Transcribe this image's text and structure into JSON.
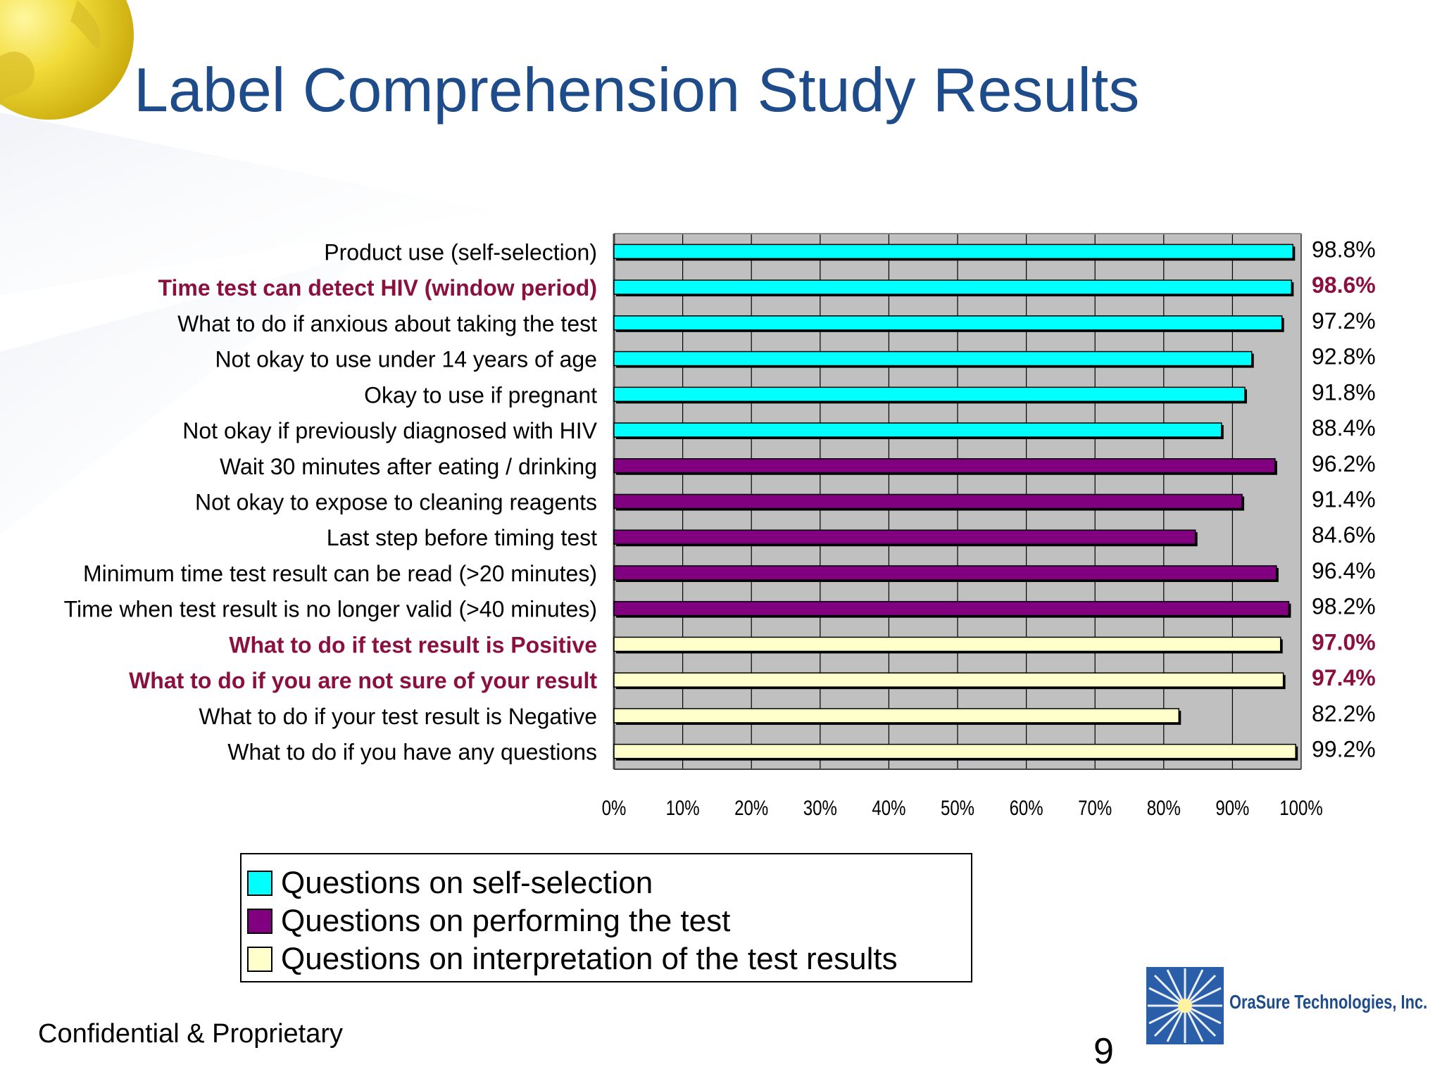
{
  "title": "Label Comprehension Study Results",
  "footer": {
    "confidential": "Confidential & Proprietary",
    "page_number": "9"
  },
  "logo": {
    "company": "OraSure Technologies, Inc."
  },
  "colors": {
    "title": "#1e4b8a",
    "highlight_text": "#8b1040",
    "plot_background": "#c0c0c0",
    "self_selection": "#00ffff",
    "performing": "#800080",
    "interpretation": "#ffffcc"
  },
  "legend": {
    "items": [
      {
        "label": "Questions on self-selection",
        "color": "#00ffff"
      },
      {
        "label": "Questions on performing the test",
        "color": "#800080"
      },
      {
        "label": "Questions on interpretation of the test results",
        "color": "#ffffcc"
      }
    ]
  },
  "chart_data": {
    "type": "bar",
    "orientation": "horizontal",
    "title": "",
    "xlabel": "",
    "ylabel": "",
    "xlim": [
      0,
      100
    ],
    "x_ticks": [
      "0%",
      "10%",
      "20%",
      "30%",
      "40%",
      "50%",
      "60%",
      "70%",
      "80%",
      "90%",
      "100%"
    ],
    "grid": true,
    "legend_position": "bottom-left",
    "categories": [
      "Product use (self-selection)",
      "Time test can detect HIV (window period)",
      "What to do if anxious about taking the test",
      "Not okay to use under 14 years of age",
      "Okay to use if pregnant",
      "Not okay if previously diagnosed with HIV",
      "Wait 30 minutes after eating / drinking",
      "Not okay to expose to cleaning reagents",
      "Last step before timing test",
      "Minimum time test result can be read (>20 minutes)",
      "Time when test result is no longer valid (>40 minutes)",
      "What to do if test result is Positive",
      "What to do if you are not sure of your result",
      "What to do if your test result is Negative",
      "What to do if you have any questions"
    ],
    "values": [
      98.8,
      98.6,
      97.2,
      92.8,
      91.8,
      88.4,
      96.2,
      91.4,
      84.6,
      96.4,
      98.2,
      97.0,
      97.4,
      82.2,
      99.2
    ],
    "value_labels": [
      "98.8%",
      "98.6%",
      "97.2%",
      "92.8%",
      "91.8%",
      "88.4%",
      "96.2%",
      "91.4%",
      "84.6%",
      "96.4%",
      "98.2%",
      "97.0%",
      "97.4%",
      "82.2%",
      "99.2%"
    ],
    "groups": [
      0,
      0,
      0,
      0,
      0,
      0,
      1,
      1,
      1,
      1,
      1,
      2,
      2,
      2,
      2
    ],
    "highlighted": [
      false,
      true,
      false,
      false,
      false,
      false,
      false,
      false,
      false,
      false,
      false,
      true,
      true,
      false,
      false
    ]
  }
}
